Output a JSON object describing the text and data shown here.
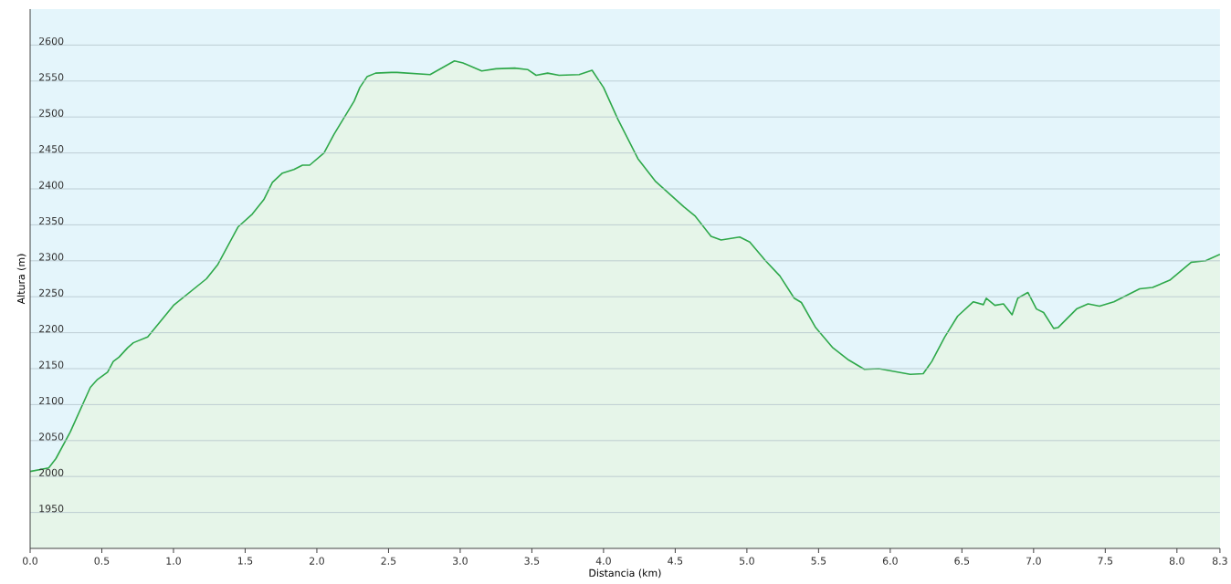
{
  "chart_data": {
    "type": "area",
    "xlabel": "Distancia  (km)",
    "ylabel": "Altura (m)",
    "x": [
      0,
      0.13,
      0.18,
      0.28,
      0.42,
      0.47,
      0.54,
      0.58,
      0.62,
      0.68,
      0.72,
      0.82,
      1.0,
      1.23,
      1.31,
      1.45,
      1.55,
      1.63,
      1.69,
      1.76,
      1.84,
      1.9,
      1.95,
      2.05,
      2.12,
      2.26,
      2.3,
      2.35,
      2.41,
      2.52,
      2.56,
      2.79,
      2.96,
      3.02,
      3.15,
      3.25,
      3.38,
      3.47,
      3.53,
      3.61,
      3.69,
      3.83,
      3.92,
      4.0,
      4.1,
      4.24,
      4.36,
      4.56,
      4.64,
      4.75,
      4.82,
      4.95,
      5.02,
      5.13,
      5.23,
      5.33,
      5.38,
      5.48,
      5.6,
      5.71,
      5.82,
      5.92,
      6.14,
      6.23,
      6.29,
      6.38,
      6.47,
      6.58,
      6.65,
      6.67,
      6.73,
      6.79,
      6.85,
      6.89,
      6.96,
      7.02,
      7.07,
      7.14,
      7.17,
      7.3,
      7.38,
      7.46,
      7.56,
      7.68,
      7.74,
      7.83,
      7.95,
      8.1,
      8.2,
      8.3
    ],
    "values": [
      2007,
      2012,
      2025,
      2062,
      2124,
      2135,
      2145,
      2160,
      2166,
      2179,
      2186,
      2194,
      2238,
      2275,
      2295,
      2347,
      2365,
      2385,
      2409,
      2422,
      2427,
      2433,
      2433,
      2450,
      2476,
      2522,
      2541,
      2556,
      2561,
      2562,
      2562,
      2559,
      2578,
      2575,
      2564,
      2567,
      2568,
      2566,
      2558,
      2561,
      2558,
      2559,
      2565,
      2541,
      2497,
      2442,
      2411,
      2375,
      2362,
      2334,
      2329,
      2333,
      2326,
      2300,
      2279,
      2248,
      2242,
      2207,
      2179,
      2162,
      2149,
      2150,
      2142,
      2143,
      2160,
      2194,
      2223,
      2243,
      2239,
      2248,
      2238,
      2240,
      2225,
      2248,
      2256,
      2233,
      2228,
      2206,
      2207,
      2233,
      2240,
      2237,
      2243,
      2255,
      2261,
      2263,
      2273,
      2298,
      2300,
      2309
    ],
    "color": "#2ea84a",
    "xlim": [
      0,
      8.3
    ],
    "ylim": [
      1900,
      2650
    ],
    "xticks": [
      {
        "value": 0,
        "label": "0.0"
      },
      0.5,
      {
        "value": 1,
        "label": "1.0"
      },
      1.5,
      {
        "value": 2,
        "label": "2.0"
      },
      2.5,
      {
        "value": 3,
        "label": "3.0"
      },
      3.5,
      {
        "value": 4,
        "label": "4.0"
      },
      4.5,
      {
        "value": 5,
        "label": "5.0"
      },
      5.5,
      {
        "value": 6,
        "label": "6.0"
      },
      6.5,
      {
        "value": 7,
        "label": "7.0"
      },
      7.5,
      {
        "value": 8,
        "label": "8.0"
      },
      8.3
    ],
    "yticks": [
      1950,
      2000,
      2050,
      2100,
      2150,
      2200,
      2250,
      2300,
      2350,
      2400,
      2450,
      2500,
      2550,
      2600
    ],
    "grid": "y"
  }
}
